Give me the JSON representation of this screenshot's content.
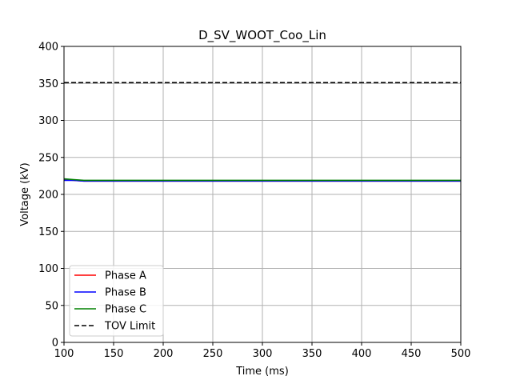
{
  "chart_data": {
    "type": "line",
    "title": "D_SV_WOOT_Coo_Lin",
    "xlabel": "Time (ms)",
    "ylabel": "Voltage (kV)",
    "xlim": [
      100,
      500
    ],
    "ylim": [
      0,
      400
    ],
    "xticks": [
      100,
      150,
      200,
      250,
      300,
      350,
      400,
      450,
      500
    ],
    "yticks": [
      0,
      50,
      100,
      150,
      200,
      250,
      300,
      350,
      400
    ],
    "grid": true,
    "legend_position": "lower-left",
    "x": [
      100,
      110,
      120,
      140,
      160,
      200,
      250,
      300,
      350,
      400,
      450,
      500
    ],
    "series": [
      {
        "name": "Phase A",
        "color": "#ff0000",
        "style": "solid",
        "values": [
          220,
          219,
          218,
          218,
          218,
          218,
          218,
          218,
          218,
          218,
          218,
          218
        ]
      },
      {
        "name": "Phase B",
        "color": "#0000ff",
        "style": "solid",
        "values": [
          219,
          219,
          218,
          218,
          218,
          218,
          218,
          218,
          218,
          218,
          218,
          218
        ]
      },
      {
        "name": "Phase C",
        "color": "#008000",
        "style": "solid",
        "values": [
          221,
          220,
          219,
          219,
          219,
          219,
          219,
          219,
          219,
          219,
          219,
          219
        ]
      },
      {
        "name": "TOV Limit",
        "color": "#000000",
        "style": "dashed",
        "values": [
          351,
          351,
          351,
          351,
          351,
          351,
          351,
          351,
          351,
          351,
          351,
          351
        ]
      }
    ]
  }
}
